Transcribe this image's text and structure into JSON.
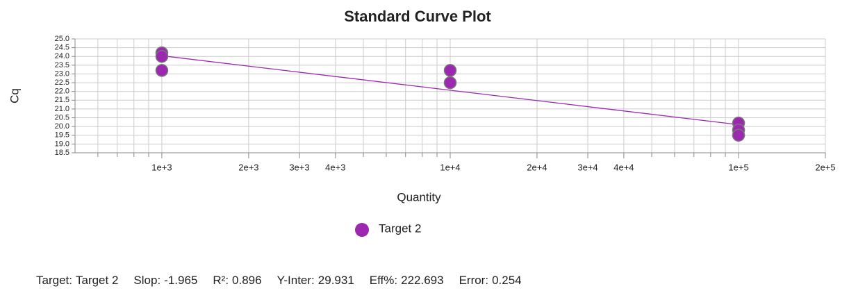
{
  "chart_data": {
    "type": "scatter",
    "title": "Standard Curve Plot",
    "xlabel": "Quantity",
    "ylabel": "Cq",
    "xscale": "log",
    "grid": true,
    "xlim": [
      500,
      200000
    ],
    "ylim": [
      18.5,
      25
    ],
    "xticks": [
      {
        "value": 1000,
        "label": "1e+3"
      },
      {
        "value": 2000,
        "label": "2e+3"
      },
      {
        "value": 3000,
        "label": "3e+3"
      },
      {
        "value": 4000,
        "label": "4e+3"
      },
      {
        "value": 10000,
        "label": "1e+4"
      },
      {
        "value": 20000,
        "label": "2e+4"
      },
      {
        "value": 30000,
        "label": "3e+4"
      },
      {
        "value": 40000,
        "label": "4e+4"
      },
      {
        "value": 100000,
        "label": "1e+5"
      },
      {
        "value": 200000,
        "label": "2e+5"
      }
    ],
    "xminorticks": [
      600,
      700,
      800,
      900,
      5000,
      6000,
      7000,
      8000,
      9000,
      50000,
      60000,
      70000,
      80000,
      90000
    ],
    "yticks": [
      {
        "value": 18.5,
        "label": "18.5"
      },
      {
        "value": 19,
        "label": "19.0"
      },
      {
        "value": 19.5,
        "label": "19.5"
      },
      {
        "value": 20,
        "label": "20.0"
      },
      {
        "value": 20.5,
        "label": "20.5"
      },
      {
        "value": 21,
        "label": "21.0"
      },
      {
        "value": 21.5,
        "label": "21.5"
      },
      {
        "value": 22,
        "label": "22.0"
      },
      {
        "value": 22.5,
        "label": "22.5"
      },
      {
        "value": 23,
        "label": "23.0"
      },
      {
        "value": 23.5,
        "label": "23.5"
      },
      {
        "value": 24,
        "label": "24.0"
      },
      {
        "value": 24.5,
        "label": "24.5"
      },
      {
        "value": 25,
        "label": "25.0"
      }
    ],
    "series": [
      {
        "name": "Target 2",
        "color": "#9c27b0",
        "x": [
          1000,
          1000,
          1000,
          10000,
          10000,
          100000,
          100000,
          100000
        ],
        "values": [
          24.2,
          24.0,
          23.2,
          23.2,
          22.5,
          20.2,
          19.8,
          19.5
        ]
      }
    ],
    "fit_color": "#9c27b0",
    "stats": {
      "target": {
        "label": "Target:",
        "value": "Target 2"
      },
      "slope": {
        "label": "Slop:",
        "value": -1.965
      },
      "r2": {
        "label": "R²:",
        "value": 0.896
      },
      "intercept": {
        "label": "Y-Inter:",
        "value": 29.931
      },
      "efficiency": {
        "label": "Eff%:",
        "value": 222.693
      },
      "error": {
        "label": "Error:",
        "value": 0.254
      }
    }
  }
}
